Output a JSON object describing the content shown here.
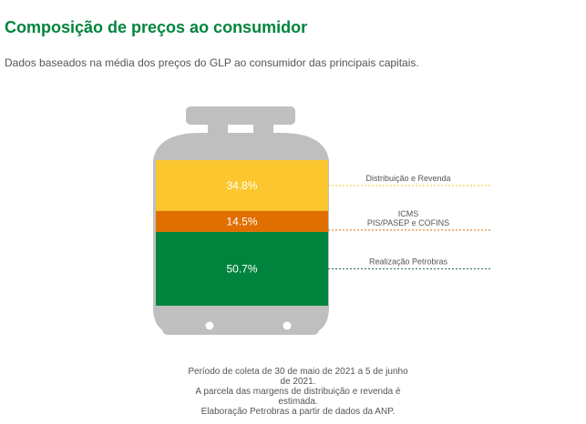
{
  "title": "Composição de preços ao consumidor",
  "subtitle": "Dados baseados na média dos preços do GLP ao consumidor das principais capitais.",
  "chart_data": {
    "type": "bar",
    "stacked": true,
    "categories": [
      "Realização Petrobras",
      "ICMS\nPIS/PASEP e COFINS",
      "Distribuição e Revenda"
    ],
    "values": [
      50.7,
      14.5,
      34.8
    ],
    "value_labels": [
      "50.7%",
      "14.5%",
      "34.8%"
    ],
    "unit": "%",
    "colors": [
      "#00843d",
      "#e06f00",
      "#fcc72e"
    ],
    "legend_position": "right",
    "grid": false
  },
  "footnote": {
    "lines": [
      "Período de coleta de 30 de maio de 2021 a 5 de junho de 2021.",
      "A parcela das margens de distribuição e revenda é estimada.",
      "Elaboração Petrobras a partir de dados da ANP."
    ]
  },
  "colors": {
    "title": "#00843d",
    "cylinder": "#bfbfbf",
    "leader_line_top": "#f2c431",
    "leader_line_middle": "#e06f00",
    "leader_line_bottom": "#1e6b5a"
  }
}
